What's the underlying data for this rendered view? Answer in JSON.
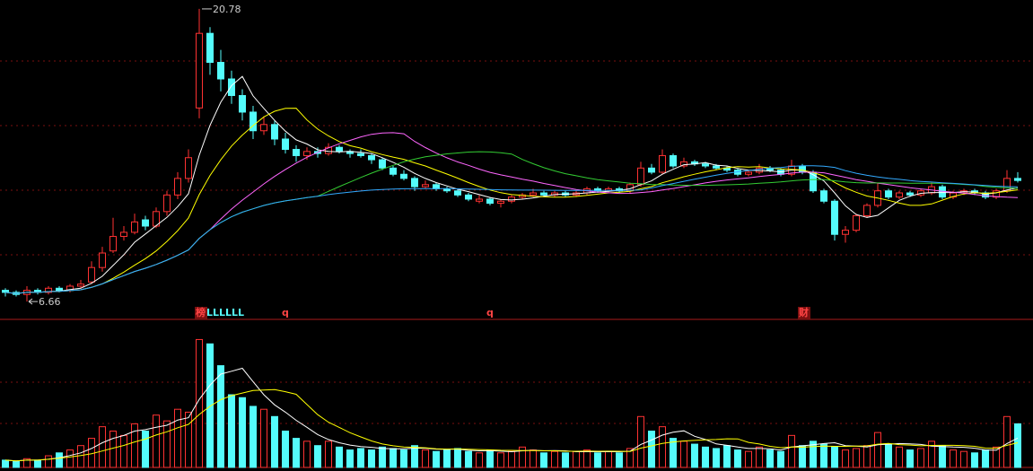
{
  "chart_data": {
    "type": "candlestick",
    "ylim": [
      5.97,
      21.21
    ],
    "vlim": [
      0,
      100
    ],
    "up_color": "#ff3232",
    "down_color": "#54fcfc",
    "ma_periods": [
      5,
      10,
      20,
      30,
      60
    ],
    "ma_colors": [
      "#ffffff",
      "#ffff00",
      "#ff66ff",
      "#33cc33",
      "#33aaff"
    ],
    "vol_ma_periods": [
      5,
      10
    ],
    "vol_ma_colors": [
      "#ffffff",
      "#ffff00"
    ],
    "candles": [
      [
        7.2,
        7.3,
        6.9,
        7.1
      ],
      [
        7.1,
        7.2,
        6.9,
        7.0
      ],
      [
        7.0,
        7.4,
        6.66,
        7.2
      ],
      [
        7.2,
        7.3,
        7.0,
        7.1
      ],
      [
        7.1,
        7.4,
        7.0,
        7.3
      ],
      [
        7.3,
        7.4,
        7.1,
        7.2
      ],
      [
        7.2,
        7.5,
        7.1,
        7.4
      ],
      [
        7.4,
        7.7,
        7.3,
        7.5
      ],
      [
        7.6,
        8.6,
        7.5,
        8.3
      ],
      [
        8.3,
        9.3,
        8.1,
        9.0
      ],
      [
        9.1,
        10.7,
        9.0,
        9.8
      ],
      [
        9.8,
        10.3,
        9.6,
        10.0
      ],
      [
        10.0,
        10.9,
        9.9,
        10.5
      ],
      [
        10.6,
        10.8,
        10.1,
        10.3
      ],
      [
        10.3,
        11.2,
        10.2,
        11.0
      ],
      [
        11.0,
        12.0,
        10.8,
        11.8
      ],
      [
        11.8,
        12.9,
        11.6,
        12.6
      ],
      [
        12.6,
        14.0,
        12.4,
        13.6
      ],
      [
        16.0,
        20.78,
        15.5,
        19.6
      ],
      [
        19.6,
        19.9,
        17.6,
        18.2
      ],
      [
        18.2,
        18.8,
        16.8,
        17.4
      ],
      [
        17.4,
        17.8,
        16.2,
        16.6
      ],
      [
        16.6,
        16.9,
        15.4,
        15.8
      ],
      [
        15.8,
        16.1,
        14.5,
        14.9
      ],
      [
        14.9,
        15.6,
        14.7,
        15.2
      ],
      [
        15.2,
        15.4,
        14.2,
        14.5
      ],
      [
        14.5,
        14.8,
        13.8,
        14.0
      ],
      [
        14.0,
        14.2,
        13.4,
        13.7
      ],
      [
        13.7,
        14.1,
        13.5,
        13.9
      ],
      [
        13.9,
        14.1,
        13.6,
        13.8
      ],
      [
        13.8,
        14.3,
        13.7,
        14.1
      ],
      [
        14.1,
        14.2,
        13.8,
        13.9
      ],
      [
        13.9,
        14.0,
        13.6,
        13.8
      ],
      [
        13.8,
        14.0,
        13.6,
        13.7
      ],
      [
        13.7,
        13.8,
        13.3,
        13.5
      ],
      [
        13.5,
        13.6,
        13.0,
        13.1
      ],
      [
        13.1,
        13.2,
        12.7,
        12.8
      ],
      [
        12.8,
        13.0,
        12.5,
        12.6
      ],
      [
        12.6,
        12.7,
        12.0,
        12.2
      ],
      [
        12.2,
        12.5,
        12.1,
        12.3
      ],
      [
        12.3,
        12.4,
        12.0,
        12.1
      ],
      [
        12.1,
        12.2,
        11.9,
        12.0
      ],
      [
        12.0,
        12.1,
        11.7,
        11.8
      ],
      [
        11.8,
        11.9,
        11.5,
        11.6
      ],
      [
        11.5,
        11.8,
        11.4,
        11.6
      ],
      [
        11.6,
        11.7,
        11.3,
        11.4
      ],
      [
        11.4,
        11.6,
        11.2,
        11.5
      ],
      [
        11.5,
        11.8,
        11.4,
        11.7
      ],
      [
        11.7,
        11.9,
        11.6,
        11.8
      ],
      [
        11.8,
        12.1,
        11.7,
        11.9
      ],
      [
        11.9,
        12.0,
        11.7,
        11.8
      ],
      [
        11.8,
        12.0,
        11.7,
        11.9
      ],
      [
        11.9,
        12.0,
        11.7,
        11.8
      ],
      [
        11.8,
        12.0,
        11.7,
        11.9
      ],
      [
        11.9,
        12.2,
        11.8,
        12.1
      ],
      [
        12.1,
        12.2,
        11.9,
        12.0
      ],
      [
        12.0,
        12.2,
        11.9,
        12.1
      ],
      [
        12.1,
        12.2,
        11.9,
        12.0
      ],
      [
        12.0,
        12.4,
        11.9,
        12.3
      ],
      [
        12.3,
        13.4,
        12.2,
        13.1
      ],
      [
        13.1,
        13.3,
        12.8,
        12.9
      ],
      [
        12.9,
        14.0,
        12.8,
        13.7
      ],
      [
        13.7,
        13.8,
        13.1,
        13.2
      ],
      [
        13.2,
        13.6,
        13.1,
        13.4
      ],
      [
        13.4,
        13.5,
        13.2,
        13.3
      ],
      [
        13.3,
        13.4,
        13.1,
        13.2
      ],
      [
        13.2,
        13.3,
        13.0,
        13.1
      ],
      [
        13.1,
        13.2,
        12.9,
        13.0
      ],
      [
        13.0,
        13.1,
        12.7,
        12.8
      ],
      [
        12.8,
        13.0,
        12.7,
        12.9
      ],
      [
        12.9,
        13.3,
        12.8,
        13.1
      ],
      [
        13.1,
        13.2,
        12.9,
        13.0
      ],
      [
        13.0,
        13.1,
        12.7,
        12.8
      ],
      [
        12.8,
        13.5,
        12.7,
        13.2
      ],
      [
        13.2,
        13.3,
        12.8,
        12.9
      ],
      [
        12.9,
        13.0,
        11.9,
        12.0
      ],
      [
        12.0,
        12.1,
        11.4,
        11.5
      ],
      [
        11.5,
        11.6,
        9.6,
        9.9
      ],
      [
        9.9,
        10.3,
        9.5,
        10.1
      ],
      [
        10.1,
        10.9,
        10.0,
        10.8
      ],
      [
        10.8,
        11.4,
        10.7,
        11.3
      ],
      [
        11.3,
        12.4,
        11.2,
        12.0
      ],
      [
        12.0,
        12.1,
        11.6,
        11.7
      ],
      [
        11.7,
        12.0,
        11.6,
        11.9
      ],
      [
        11.9,
        12.0,
        11.7,
        11.8
      ],
      [
        11.8,
        12.1,
        11.7,
        12.0
      ],
      [
        11.9,
        12.4,
        11.8,
        12.2
      ],
      [
        12.2,
        12.3,
        11.6,
        11.7
      ],
      [
        11.7,
        12.0,
        11.6,
        11.9
      ],
      [
        11.9,
        12.1,
        11.8,
        12.0
      ],
      [
        12.0,
        12.1,
        11.8,
        11.9
      ],
      [
        11.9,
        12.0,
        11.6,
        11.7
      ],
      [
        11.7,
        12.1,
        11.6,
        12.0
      ],
      [
        12.0,
        13.0,
        11.9,
        12.6
      ],
      [
        12.6,
        12.9,
        12.4,
        12.5
      ]
    ],
    "volumes": [
      5,
      4,
      6,
      5,
      8,
      10,
      12,
      15,
      20,
      28,
      25,
      22,
      30,
      25,
      36,
      32,
      40,
      38,
      88,
      85,
      70,
      50,
      48,
      42,
      40,
      35,
      25,
      20,
      18,
      15,
      18,
      14,
      12,
      13,
      12,
      14,
      13,
      12,
      15,
      12,
      11,
      12,
      13,
      11,
      10,
      12,
      10,
      11,
      14,
      12,
      10,
      11,
      10,
      11,
      12,
      10,
      11,
      10,
      13,
      35,
      25,
      28,
      20,
      18,
      16,
      14,
      13,
      15,
      12,
      11,
      14,
      12,
      11,
      22,
      15,
      18,
      16,
      14,
      12,
      13,
      15,
      24,
      16,
      14,
      12,
      13,
      18,
      15,
      12,
      11,
      10,
      12,
      14,
      35,
      30
    ],
    "markers": [
      {
        "text": "榜",
        "index": 18,
        "color": "#ff4444",
        "boxed": true
      },
      {
        "text": "LLLLLL",
        "index": 19,
        "color": "#54fcfc",
        "boxed": false
      },
      {
        "text": "q",
        "index": 26,
        "color": "#ff4444",
        "boxed": false
      },
      {
        "text": "q",
        "index": 45,
        "color": "#ff4444",
        "boxed": false
      },
      {
        "text": "财",
        "index": 74,
        "color": "#ff4444",
        "boxed": true
      }
    ]
  }
}
